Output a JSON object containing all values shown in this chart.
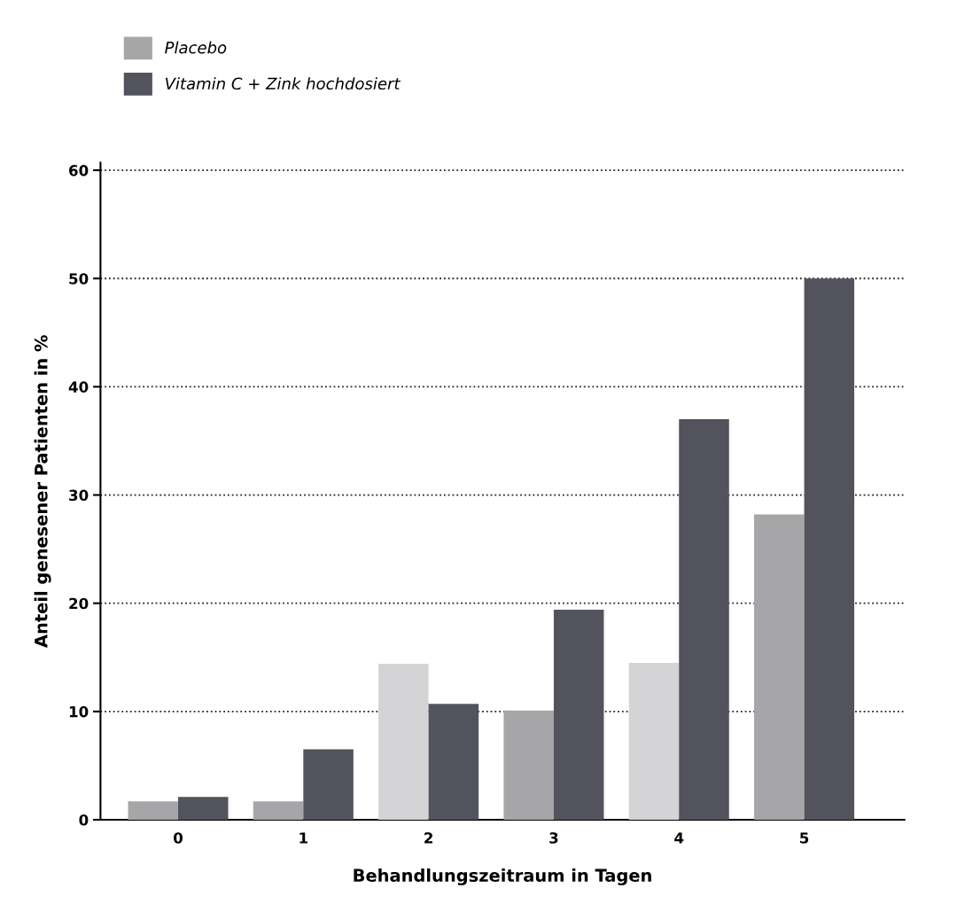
{
  "chart_data": {
    "type": "bar",
    "xlabel": "Behandlungszeitraum in Tagen",
    "ylabel": "Anteil genesener Patienten in %",
    "categories": [
      "0",
      "1",
      "2",
      "3",
      "4",
      "5"
    ],
    "series": [
      {
        "name": "Placebo",
        "color": "#a6a6a8",
        "colors": [
          "#a6a6a8",
          "#a6a6a8",
          "#d4d4d6",
          "#a6a6a8",
          "#d4d4d6",
          "#a6a6a8"
        ],
        "values": [
          1.7,
          1.7,
          14.4,
          10.1,
          14.5,
          28.2
        ]
      },
      {
        "name": "Vitamin C + Zink hochdosiert",
        "color": "#53535d",
        "values": [
          2.1,
          6.5,
          10.7,
          19.4,
          37,
          50
        ]
      }
    ],
    "ylim": [
      0,
      60.7
    ],
    "yticks": [
      0,
      10,
      20,
      30,
      40,
      50,
      60
    ],
    "grid": "y",
    "line_style": "dotted",
    "legend": "top left"
  }
}
